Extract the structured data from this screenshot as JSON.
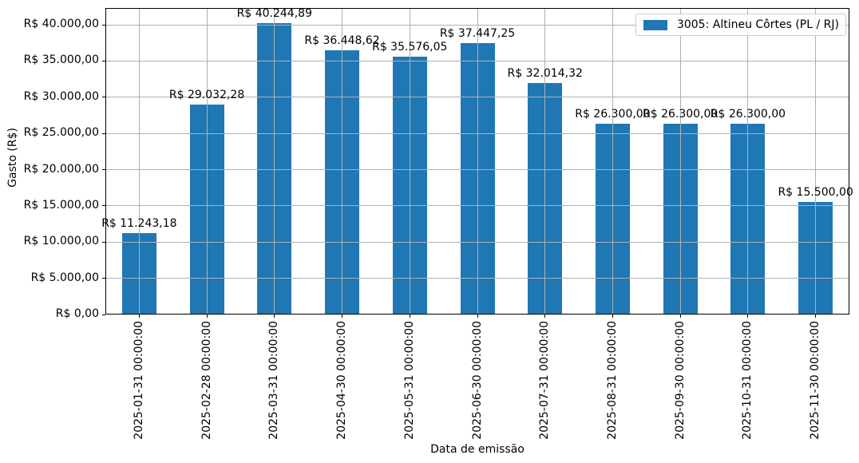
{
  "chart_data": {
    "type": "bar",
    "title": "",
    "xlabel": "Data de emissão",
    "ylabel": "Gasto (R$)",
    "series_name": "3005: Altineu Côrtes (PL / RJ)",
    "categories": [
      "2025-01-31 00:00:00",
      "2025-02-28 00:00:00",
      "2025-03-31 00:00:00",
      "2025-04-30 00:00:00",
      "2025-05-31 00:00:00",
      "2025-06-30 00:00:00",
      "2025-07-31 00:00:00",
      "2025-08-31 00:00:00",
      "2025-09-30 00:00:00",
      "2025-10-31 00:00:00",
      "2025-11-30 00:00:00"
    ],
    "values": [
      11243.18,
      29032.28,
      40244.89,
      36448.62,
      35576.05,
      37447.25,
      32014.32,
      26300.0,
      26300.0,
      26300.0,
      15500.0
    ],
    "bar_labels": [
      "R$ 11.243,18",
      "R$ 29.032,28",
      "R$ 40.244,89",
      "R$ 36.448,62",
      "R$ 35.576,05",
      "R$ 37.447,25",
      "R$ 32.014,32",
      "R$ 26.300,00",
      "R$ 26.300,00",
      "R$ 26.300,00",
      "R$ 15.500,00"
    ],
    "ytick_step": 5000,
    "ytick_labels": [
      "R$ 0,00",
      "R$ 5.000,00",
      "R$ 10.000,00",
      "R$ 15.000,00",
      "R$ 20.000,00",
      "R$ 25.000,00",
      "R$ 30.000,00",
      "R$ 35.000,00",
      "R$ 40.000,00"
    ],
    "ylim": [
      0,
      42320
    ],
    "grid": true,
    "legend_position": "upper right",
    "colors": {
      "bar": "#1f77b4",
      "grid": "#b0b0b0",
      "axis": "#000000",
      "legend_border": "#cccccc",
      "background": "#ffffff"
    }
  }
}
